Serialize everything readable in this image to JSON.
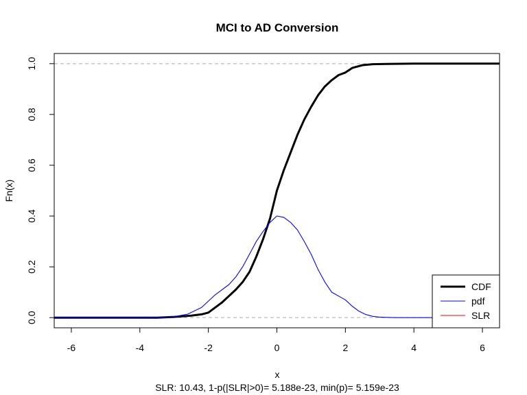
{
  "chart_data": {
    "type": "line",
    "title": "MCI to  AD Conversion",
    "xlabel": "x",
    "ylabel": "Fn(x)",
    "subtitle": "SLR:    10.43, 1-p(|SLR|>0)= 5.188e-23, min(p)= 5.159e-23",
    "xlim": [
      -6.5,
      6.5
    ],
    "ylim": [
      -0.04,
      1.04
    ],
    "x_ticks": [
      -6,
      -4,
      -2,
      0,
      2,
      4,
      6
    ],
    "x_tick_labels": [
      "-6",
      "-4",
      "-2",
      "0",
      "2",
      "4",
      "6"
    ],
    "y_ticks": [
      0.0,
      0.2,
      0.4,
      0.6,
      0.8,
      1.0
    ],
    "y_tick_labels": [
      "0.0",
      "0.2",
      "0.4",
      "0.6",
      "0.8",
      "1.0"
    ],
    "reference_lines_y": [
      0,
      1
    ],
    "legend": {
      "position": "bottom-right",
      "entries": [
        {
          "label": "CDF",
          "color": "#000000"
        },
        {
          "label": "pdf",
          "color": "#0000ff"
        },
        {
          "label": "SLR",
          "color": "#ff0000"
        }
      ]
    },
    "series": [
      {
        "name": "CDF",
        "color": "#000000",
        "x": [
          -6.5,
          -3.5,
          -3.0,
          -2.5,
          -2.2,
          -2.0,
          -1.8,
          -1.6,
          -1.4,
          -1.2,
          -1.0,
          -0.8,
          -0.6,
          -0.4,
          -0.2,
          0.0,
          0.2,
          0.4,
          0.6,
          0.8,
          1.0,
          1.2,
          1.4,
          1.6,
          1.8,
          2.0,
          2.2,
          2.5,
          2.8,
          3.2,
          4.0,
          6.5
        ],
        "values": [
          0.0,
          0.0,
          0.003,
          0.008,
          0.013,
          0.02,
          0.04,
          0.06,
          0.085,
          0.11,
          0.14,
          0.18,
          0.24,
          0.31,
          0.39,
          0.5,
          0.58,
          0.65,
          0.72,
          0.78,
          0.83,
          0.875,
          0.91,
          0.935,
          0.955,
          0.965,
          0.983,
          0.994,
          0.998,
          0.999,
          1.0,
          1.0
        ]
      },
      {
        "name": "pdf",
        "color": "#0000ff",
        "x": [
          -6.5,
          -4.0,
          -3.5,
          -3.0,
          -2.6,
          -2.2,
          -1.8,
          -1.4,
          -1.2,
          -1.0,
          -0.8,
          -0.6,
          -0.4,
          -0.2,
          0.0,
          0.2,
          0.4,
          0.6,
          0.8,
          1.0,
          1.2,
          1.4,
          1.6,
          1.8,
          2.0,
          2.2,
          2.4,
          2.6,
          2.8,
          3.0,
          3.2,
          3.5,
          4.0,
          6.5
        ],
        "values": [
          0.0,
          0.0,
          0.001,
          0.004,
          0.014,
          0.04,
          0.09,
          0.13,
          0.16,
          0.2,
          0.25,
          0.3,
          0.34,
          0.375,
          0.4,
          0.395,
          0.375,
          0.345,
          0.3,
          0.25,
          0.19,
          0.14,
          0.1,
          0.085,
          0.07,
          0.045,
          0.025,
          0.012,
          0.005,
          0.002,
          0.001,
          0.0,
          0.0,
          0.0
        ]
      }
    ]
  }
}
